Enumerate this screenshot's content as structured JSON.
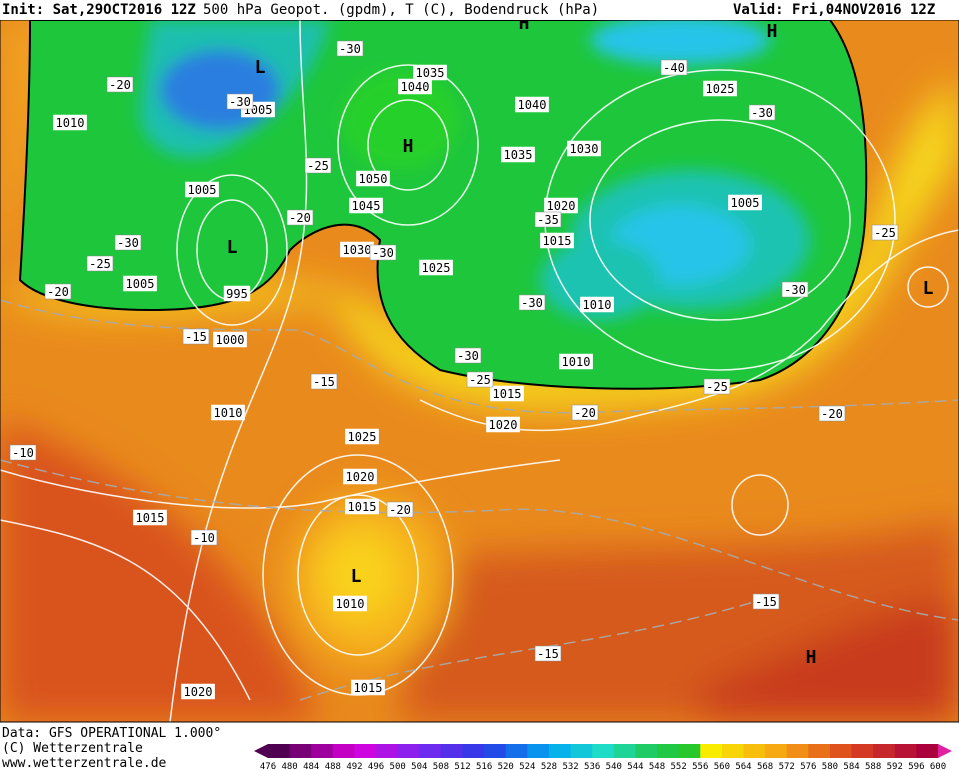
{
  "header": {
    "init": "Init: Sat,29OCT2016 12Z",
    "title": "500 hPa Geopot. (gpdm), T (C), Bodendruck (hPa)",
    "valid": "Valid: Fri,04NOV2016 12Z"
  },
  "footer": {
    "data": "Data: GFS OPERATIONAL 1.000°",
    "copyright": "(C) Wetterzentrale",
    "url": "www.wetterzentrale.de"
  },
  "colorbar": {
    "labels": [
      476,
      480,
      484,
      488,
      492,
      496,
      500,
      504,
      508,
      512,
      516,
      520,
      524,
      528,
      532,
      536,
      540,
      544,
      548,
      552,
      556,
      560,
      564,
      568,
      572,
      576,
      580,
      584,
      588,
      592,
      596,
      600
    ]
  },
  "map_labels": {
    "pressure": [
      "1010",
      "1005",
      "1005",
      "1005",
      "995",
      "1000",
      "1010",
      "1025",
      "1020",
      "1015",
      "1015",
      "1010",
      "1015",
      "1020",
      "1035",
      "1040",
      "1050",
      "1045",
      "1030",
      "1025",
      "1040",
      "1035",
      "1030",
      "1020",
      "1015",
      "1010",
      "1010",
      "1015",
      "1020",
      "1025",
      "1005"
    ],
    "temperature": [
      "-30",
      "-20",
      "-30",
      "-25",
      "-20",
      "-30",
      "-25",
      "-20",
      "-15",
      "-15",
      "-10",
      "-10",
      "-20",
      "-15",
      "-15",
      "-20",
      "-25",
      "-30",
      "-30",
      "-35",
      "-30",
      "-40",
      "-30",
      "-30",
      "-25",
      "-20",
      "-25"
    ],
    "centers": [
      "L",
      "H",
      "L",
      "L",
      "H",
      "H",
      "L",
      "H"
    ]
  }
}
